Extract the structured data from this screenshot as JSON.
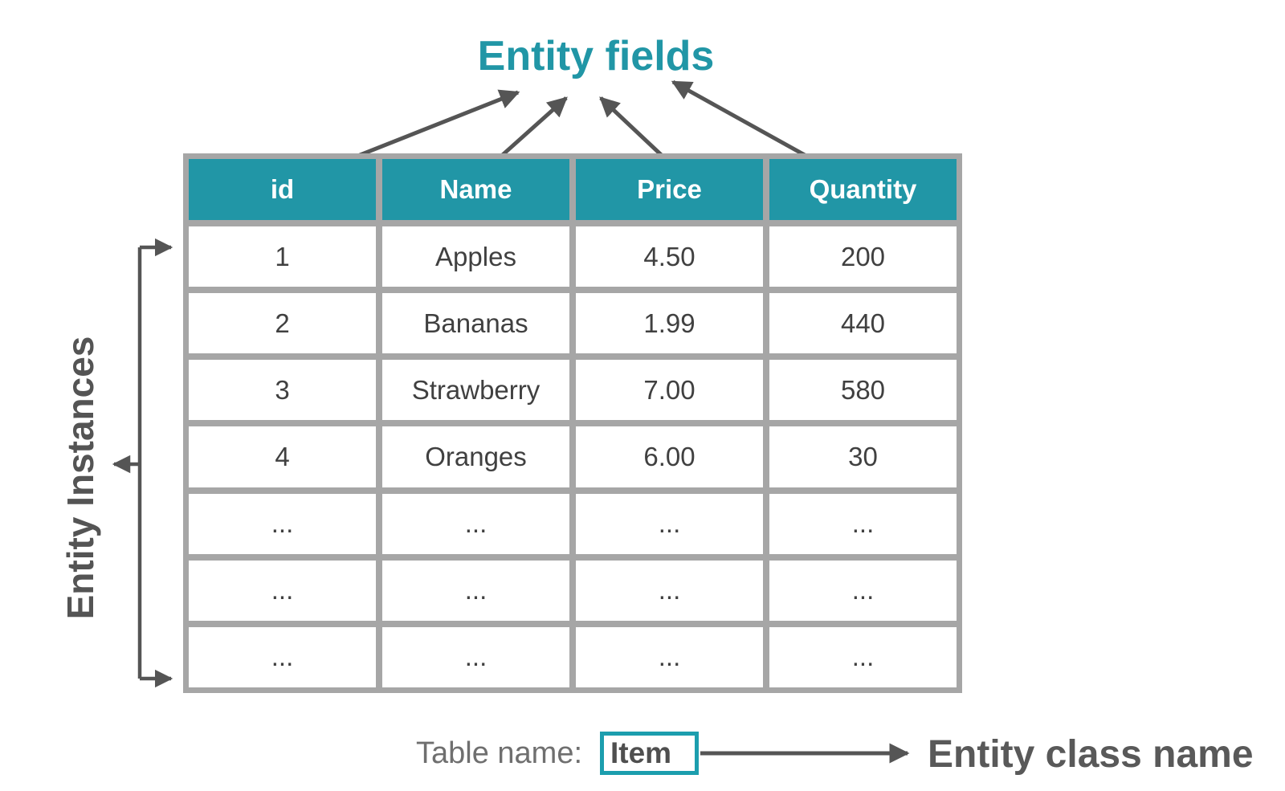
{
  "title": "Entity fields",
  "table": {
    "columns": [
      "id",
      "Name",
      "Price",
      "Quantity"
    ],
    "rows": [
      [
        "1",
        "Apples",
        "4.50",
        "200"
      ],
      [
        "2",
        "Bananas",
        "1.99",
        "440"
      ],
      [
        "3",
        "Strawberry",
        "7.00",
        "580"
      ],
      [
        "4",
        "Oranges",
        "6.00",
        "30"
      ],
      [
        "...",
        "...",
        "...",
        "..."
      ],
      [
        "...",
        "...",
        "...",
        "..."
      ],
      [
        "...",
        "...",
        "...",
        "..."
      ]
    ]
  },
  "annotations": {
    "left_label": "Entity Instances",
    "table_name_label": "Table name:",
    "table_name_value": "Item",
    "class_name_label": "Entity class name"
  },
  "colors": {
    "teal": "#2196A6",
    "box_border_teal": "#1C9EAE",
    "table_border_gray": "#A6A6A6",
    "arrow_gray": "#555555",
    "cell_text": "#404040",
    "label_gray": "#595959",
    "muted_gray": "#6F6F6F"
  }
}
